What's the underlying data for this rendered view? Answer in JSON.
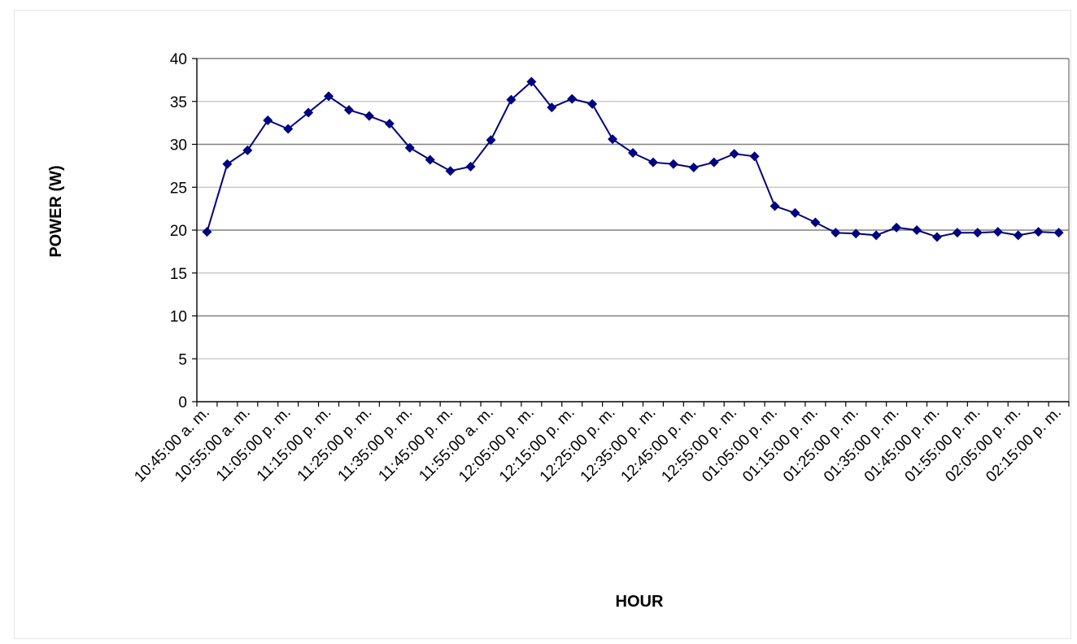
{
  "chart_data": {
    "type": "line",
    "xlabel": "HOUR",
    "ylabel": "POWER (W)",
    "ylim": [
      0,
      40
    ],
    "yticks": [
      0,
      5,
      10,
      15,
      20,
      25,
      30,
      35,
      40
    ],
    "grid": true,
    "legend": "none",
    "colors": {
      "line": "#000080",
      "marker": "#000080",
      "gridline": "#808080",
      "gridline_minor": "#c0c0c0"
    },
    "marker": "diamond",
    "tick_labels": [
      "10:45:00 a. m.",
      "10:55:00 a. m.",
      "11:05:00 p. m.",
      "11:15:00 p. m.",
      "11:25:00 p. m.",
      "11:35:00 p. m.",
      "11:45:00 p. m.",
      "11:55:00 a. m.",
      "12:05:00 p. m.",
      "12:15:00 p. m.",
      "12:25:00 p. m.",
      "12:35:00 p. m.",
      "12:45:00 p. m.",
      "12:55:00 p. m.",
      "01:05:00 p. m.",
      "01:15:00 p. m.",
      "01:25:00 p. m.",
      "01:35:00 p. m.",
      "01:45:00 p. m.",
      "01:55:00 p. m.",
      "02:05:00 p. m.",
      "02:15:00 p. m."
    ],
    "series": [
      {
        "values": [
          19.8,
          27.7,
          29.3,
          32.8,
          31.8,
          33.7,
          35.6,
          34.0,
          33.3,
          32.4,
          29.6,
          28.2,
          26.9,
          27.4,
          30.5,
          35.2,
          37.3,
          34.3,
          35.3,
          34.7,
          30.6,
          29.0,
          27.9,
          27.7,
          27.3,
          27.9,
          28.9,
          28.6,
          22.8,
          22.0,
          20.9,
          19.7,
          19.6,
          19.4,
          20.3,
          20.0,
          19.2,
          19.7,
          19.7,
          19.8,
          19.4,
          19.8,
          19.7
        ]
      }
    ]
  }
}
